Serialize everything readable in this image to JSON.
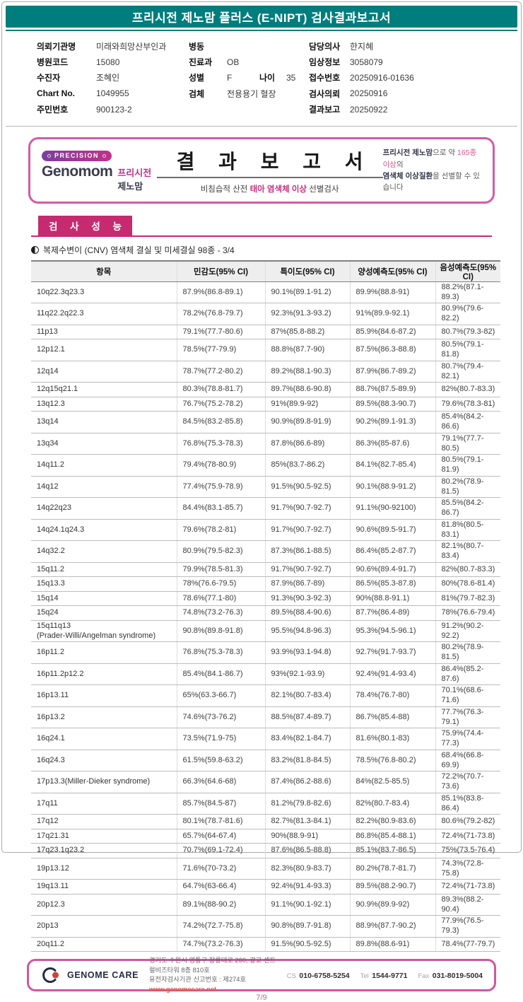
{
  "brand_colors": {
    "header_teal": "#007d7d",
    "section_magenta": "#c52b6e",
    "box_border_pink": "#d25ca4",
    "footer_border_pink": "#cf57a0",
    "website_red": "#e0584a",
    "accent_pink_text": "#d9548f"
  },
  "header": {
    "title": "프리시전 제노맘 플러스 (E-NIPT) 검사결과보고서"
  },
  "patient_info": {
    "col1": [
      {
        "label": "의뢰기관명",
        "value": "미래와희망산부인과"
      },
      {
        "label": "병원코드",
        "value": "15080"
      },
      {
        "label": "수진자",
        "value": "조혜인"
      },
      {
        "label": "Chart No.",
        "value": "1049955"
      },
      {
        "label": "주민번호",
        "value": "900123-2"
      }
    ],
    "col2": [
      {
        "label": "병동",
        "value": ""
      },
      {
        "label": "진료과",
        "value": "OB"
      },
      {
        "label": "성별",
        "value": "F",
        "label2": "나이",
        "value2": "35"
      },
      {
        "label": "검체",
        "value": "전용용기 혈장"
      }
    ],
    "col3": [
      {
        "label": "담당의사",
        "value": "한지혜"
      },
      {
        "label": "임상정보",
        "value": "3058079"
      },
      {
        "label": "접수번호",
        "value": "20250916-01636"
      },
      {
        "label": "검사의뢰",
        "value": "20250916"
      },
      {
        "label": "결과보고",
        "value": "20250922"
      }
    ]
  },
  "report_box": {
    "precision_badge": "PRECISION",
    "brand_en": "Genomom",
    "brand_kr_accent": "프리시전",
    "brand_kr_rest": "제노맘",
    "title": "결 과 보 고 서",
    "subtitle_prefix": "비침습적 산전 ",
    "subtitle_accent": "태아 염색체 이상",
    "subtitle_suffix": " 선별검사",
    "right_line1_bold": "프리시전 제노맘",
    "right_line1_mid": "으로 약 ",
    "right_line1_accent": "165종 이상",
    "right_line1_end": "의",
    "right_line2_bold": "염색체 이상질환",
    "right_line2_end": "을 선별할 수 있습니다"
  },
  "section": {
    "badge": "검 사 성 능",
    "subtitle": "복제수변이 (CNV) 염색체 결실 및 미세결실 98종 - 3/4"
  },
  "table": {
    "headers": [
      "항목",
      "민감도(95% CI)",
      "특이도(95% CI)",
      "양성예측도(95% CI)",
      "음성예측도(95% CI)"
    ],
    "rows": [
      [
        "10q22.3q23.3",
        "87.9%(86.8-89.1)",
        "90.1%(89.1-91.2)",
        "89.9%(88.8-91)",
        "88.2%(87.1-89.3)"
      ],
      [
        "11q22.2q22.3",
        "78.2%(76.8-79.7)",
        "92.3%(91.3-93.2)",
        "91%(89.9-92.1)",
        "80.9%(79.6-82.2)"
      ],
      [
        "11p13",
        "79.1%(77.7-80.6)",
        "87%(85.8-88.2)",
        "85.9%(84.6-87.2)",
        "80.7%(79.3-82)"
      ],
      [
        "12p12.1",
        "78.5%(77-79.9)",
        "88.8%(87.7-90)",
        "87.5%(86.3-88.8)",
        "80.5%(79.1-81.8)"
      ],
      [
        "12q14",
        "78.7%(77.2-80.2)",
        "89.2%(88.1-90.3)",
        "87.9%(86.7-89.2)",
        "80.7%(79.4-82.1)"
      ],
      [
        "12q15q21.1",
        "80.3%(78.8-81.7)",
        "89.7%(88.6-90.8)",
        "88.7%(87.5-89.9)",
        "82%(80.7-83.3)"
      ],
      [
        "13q12.3",
        "76.7%(75.2-78.2)",
        "91%(89.9-92)",
        "89.5%(88.3-90.7)",
        "79.6%(78.3-81)"
      ],
      [
        "13q14",
        "84.5%(83.2-85.8)",
        "90.9%(89.8-91.9)",
        "90.2%(89.1-91.3)",
        "85.4%(84.2-86.6)"
      ],
      [
        "13q34",
        "76.8%(75.3-78.3)",
        "87.8%(86.6-89)",
        "86.3%(85-87.6)",
        "79.1%(77.7-80.5)"
      ],
      [
        "14q11.2",
        "79.4%(78-80.9)",
        "85%(83.7-86.2)",
        "84.1%(82.7-85.4)",
        "80.5%(79.1-81.9)"
      ],
      [
        "14q12",
        "77.4%(75.9-78.9)",
        "91.5%(90.5-92.5)",
        "90.1%(88.9-91.2)",
        "80.2%(78.9-81.5)"
      ],
      [
        "14q22q23",
        "84.4%(83.1-85.7)",
        "91.7%(90.7-92.7)",
        "91.1%(90-92100)",
        "85.5%(84.2-86.7)"
      ],
      [
        "14q24.1q24.3",
        "79.6%(78.2-81)",
        "91.7%(90.7-92.7)",
        "90.6%(89.5-91.7)",
        "81.8%(80.5-83.1)"
      ],
      [
        "14q32.2",
        "80.9%(79.5-82.3)",
        "87.3%(86.1-88.5)",
        "86.4%(85.2-87.7)",
        "82.1%(80.7-83.4)"
      ],
      [
        "15q11.2",
        "79.9%(78.5-81.3)",
        "91.7%(90.7-92.7)",
        "90.6%(89.4-91.7)",
        "82%(80.7-83.3)"
      ],
      [
        "15q13.3",
        "78%(76.6-79.5)",
        "87.9%(86.7-89)",
        "86.5%(85.3-87.8)",
        "80%(78.6-81.4)"
      ],
      [
        "15q14",
        "78.6%(77.1-80)",
        "91.3%(90.3-92.3)",
        "90%(88.8-91.1)",
        "81%(79.7-82.3)"
      ],
      [
        "15q24",
        "74.8%(73.2-76.3)",
        "89.5%(88.4-90.6)",
        "87.7%(86.4-89)",
        "78%(76.6-79.4)"
      ],
      [
        "15q11q13\n(Prader-Willi/Angelman syndrome)",
        "90.8%(89.8-91.8)",
        "95.5%(94.8-96.3)",
        "95.3%(94.5-96.1)",
        "91.2%(90.2-92.2)"
      ],
      [
        "16p11.2",
        "76.8%(75.3-78.3)",
        "93.9%(93.1-94.8)",
        "92.7%(91.7-93.7)",
        "80.2%(78.9-81.5)"
      ],
      [
        "16p11.2p12.2",
        "85.4%(84.1-86.7)",
        "93%(92.1-93.9)",
        "92.4%(91.4-93.4)",
        "86.4%(85.2-87.6)"
      ],
      [
        "16p13.11",
        "65%(63.3-66.7)",
        "82.1%(80.7-83.4)",
        "78.4%(76.7-80)",
        "70.1%(68.6-71.6)"
      ],
      [
        "16p13.2",
        "74.6%(73-76.2)",
        "88.5%(87.4-89.7)",
        "86.7%(85.4-88)",
        "77.7%(76.3-79.1)"
      ],
      [
        "16q24.1",
        "73.5%(71.9-75)",
        "83.4%(82.1-84.7)",
        "81.6%(80.1-83)",
        "75.9%(74.4-77.3)"
      ],
      [
        "16q24.3",
        "61.5%(59.8-63.2)",
        "83.2%(81.8-84.5)",
        "78.5%(76.8-80.2)",
        "68.4%(66.8-69.9)"
      ],
      [
        "17p13.3(Miller-Dieker syndrome)",
        "66.3%(64.6-68)",
        "87.4%(86.2-88.6)",
        "84%(82.5-85.5)",
        "72.2%(70.7-73.6)"
      ],
      [
        "17q11",
        "85.7%(84.5-87)",
        "81.2%(79.8-82.6)",
        "82%(80.7-83.4)",
        "85.1%(83.8-86.4)"
      ],
      [
        "17q12",
        "80.1%(78.7-81.6)",
        "82.7%(81.3-84.1)",
        "82.2%(80.9-83.6)",
        "80.6%(79.2-82)"
      ],
      [
        "17q21.31",
        "65.7%(64-67.4)",
        "90%(88.9-91)",
        "86.8%(85.4-88.1)",
        "72.4%(71-73.8)"
      ],
      [
        "17q23.1q23.2",
        "70.7%(69.1-72.4)",
        "87.6%(86.5-88.8)",
        "85.1%(83.7-86.5)",
        "75%(73.5-76.4)"
      ],
      [
        "19p13.12",
        "71.6%(70-73.2)",
        "82.3%(80.9-83.7)",
        "80.2%(78.7-81.7)",
        "74.3%(72.8-75.8)"
      ],
      [
        "19q13.11",
        "64.7%(63-66.4)",
        "92.4%(91.4-93.3)",
        "89.5%(88.2-90.7)",
        "72.4%(71-73.8)"
      ],
      [
        "20p12.3",
        "89.1%(88-90.2)",
        "91.1%(90.1-92.1)",
        "90.9%(89.9-92)",
        "89.3%(88.2-90.4)"
      ],
      [
        "20p13",
        "74.2%(72.7-75.8)",
        "90.8%(89.7-91.8)",
        "88.9%(87.7-90.2)",
        "77.9%(76.5-79.3)"
      ],
      [
        "20q11.2",
        "74.7%(73.2-76.3)",
        "91.5%(90.5-92.5)",
        "89.8%(88.6-91)",
        "78.4%(77-79.7)"
      ]
    ]
  },
  "footer": {
    "brand": "GENOME CARE",
    "address1": "경기도 수원시 영통구 창룡대로 260, 광교 센트럴비즈타워 8층 810호",
    "address2": "유전자검사기관 신고번호 : 제274호",
    "website": "www.genomecare.net",
    "cs_label": "CS",
    "cs_value": "010-6758-5254",
    "tel_label": "Tel",
    "tel_value": "1544-9771",
    "fax_label": "Fax",
    "fax_value": "031-8019-5004"
  },
  "page": {
    "number": "7/9"
  }
}
